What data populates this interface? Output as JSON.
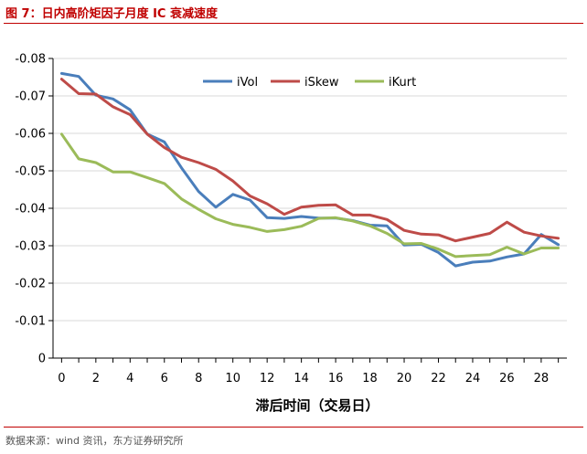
{
  "figure": {
    "title": "图 7：日内高阶矩因子月度 IC 衰减速度",
    "source": "数据来源：wind 资讯，东方证券研究所"
  },
  "chart_data": {
    "type": "line",
    "title": "",
    "xlabel": "滞后时间（交易日）",
    "ylabel": "",
    "x": [
      0,
      1,
      2,
      3,
      4,
      5,
      6,
      7,
      8,
      9,
      10,
      11,
      12,
      13,
      14,
      15,
      16,
      17,
      18,
      19,
      20,
      21,
      22,
      23,
      24,
      25,
      26,
      27,
      28,
      29
    ],
    "xticks": [
      0,
      2,
      4,
      6,
      8,
      10,
      12,
      14,
      16,
      18,
      20,
      22,
      24,
      26,
      28
    ],
    "xlim": [
      -0.5,
      29.5
    ],
    "ylim": [
      0,
      -0.08
    ],
    "yticks": [
      0,
      -0.01,
      -0.02,
      -0.03,
      -0.04,
      -0.05,
      -0.06,
      -0.07,
      -0.08
    ],
    "ytick_labels": [
      "0",
      "-0.01",
      "-0.02",
      "-0.03",
      "-0.04",
      "-0.05",
      "-0.06",
      "-0.07",
      "-0.08"
    ],
    "legend_position": "top-center",
    "grid": "horizontal",
    "series": [
      {
        "name": "iVol",
        "color": "#4a7ebb",
        "values": [
          -0.076,
          -0.0752,
          -0.0702,
          -0.0692,
          -0.0663,
          -0.0598,
          -0.0577,
          -0.0508,
          -0.0445,
          -0.0403,
          -0.0437,
          -0.0422,
          -0.0375,
          -0.0373,
          -0.0378,
          -0.0374,
          -0.0374,
          -0.0367,
          -0.0355,
          -0.0353,
          -0.0302,
          -0.0304,
          -0.0282,
          -0.0246,
          -0.0256,
          -0.0259,
          -0.027,
          -0.0278,
          -0.033,
          -0.0303
        ]
      },
      {
        "name": "iSkew",
        "color": "#be4b48",
        "values": [
          -0.0745,
          -0.0706,
          -0.0705,
          -0.0671,
          -0.065,
          -0.0598,
          -0.0562,
          -0.0536,
          -0.0522,
          -0.0504,
          -0.0473,
          -0.0433,
          -0.0412,
          -0.0384,
          -0.0403,
          -0.0408,
          -0.0409,
          -0.0382,
          -0.0382,
          -0.037,
          -0.0341,
          -0.0331,
          -0.0329,
          -0.0313,
          -0.0323,
          -0.0333,
          -0.0363,
          -0.0336,
          -0.0326,
          -0.032
        ]
      },
      {
        "name": "iKurt",
        "color": "#9bbb59",
        "values": [
          -0.0598,
          -0.0532,
          -0.0522,
          -0.0497,
          -0.0497,
          -0.0482,
          -0.0466,
          -0.0425,
          -0.0397,
          -0.0372,
          -0.0357,
          -0.0349,
          -0.0338,
          -0.0343,
          -0.0352,
          -0.0373,
          -0.0375,
          -0.0366,
          -0.0353,
          -0.0333,
          -0.0305,
          -0.0306,
          -0.0291,
          -0.0271,
          -0.0274,
          -0.0276,
          -0.0296,
          -0.0278,
          -0.0294,
          -0.0294
        ]
      }
    ]
  }
}
